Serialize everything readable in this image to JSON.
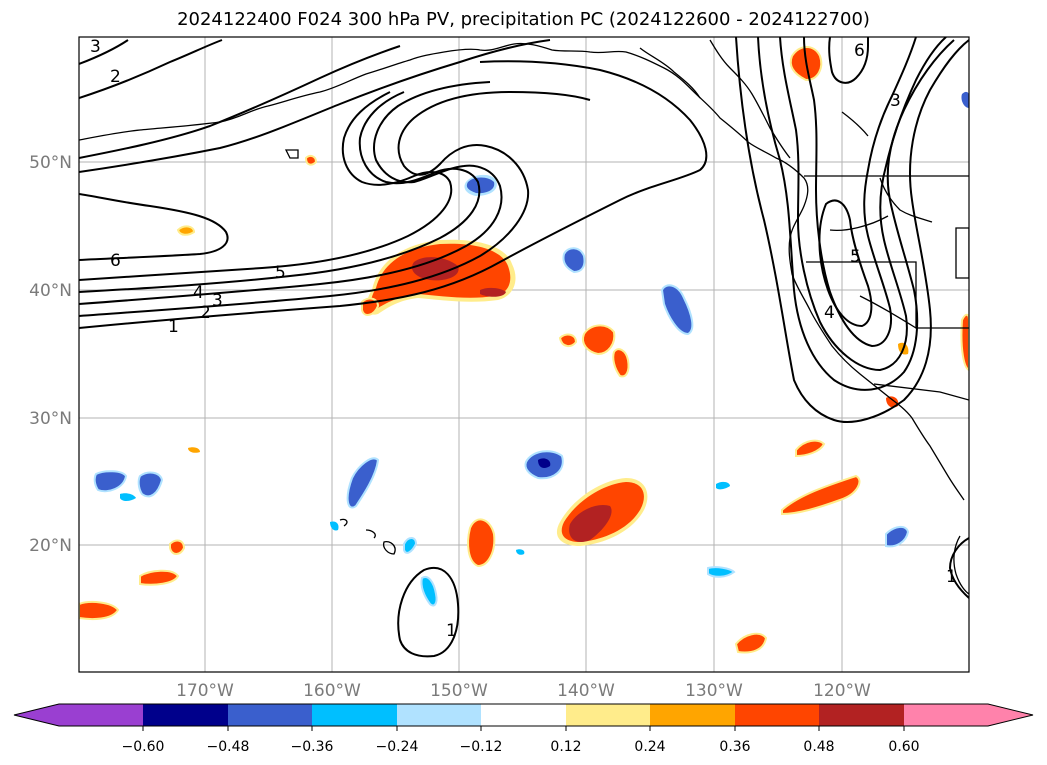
{
  "title": "2024122400 F024 300 hPa PV, precipitation PC (2024122600 - 2024122700)",
  "map": {
    "lat_labels": [
      "50°N",
      "40°N",
      "30°N",
      "20°N"
    ],
    "lon_labels": [
      "170°W",
      "160°W",
      "150°W",
      "140°W",
      "130°W",
      "120°W"
    ],
    "contour_labels": [
      "1",
      "2",
      "3",
      "4",
      "5",
      "6",
      "2",
      "3",
      "6",
      "3",
      "5",
      "4",
      "1",
      "1"
    ]
  },
  "colorbar": {
    "tick_labels": [
      "−0.60",
      "−0.48",
      "−0.36",
      "−0.24",
      "−0.12",
      "0.12",
      "0.24",
      "0.36",
      "0.48",
      "0.60"
    ],
    "colors": [
      "#9a3fd1",
      "#00008b",
      "#3a5fcd",
      "#00bfff",
      "#b0e2ff",
      "#ffffff",
      "#ffec8b",
      "#ffa500",
      "#ff4500",
      "#b22222",
      "#ff82ab"
    ]
  }
}
